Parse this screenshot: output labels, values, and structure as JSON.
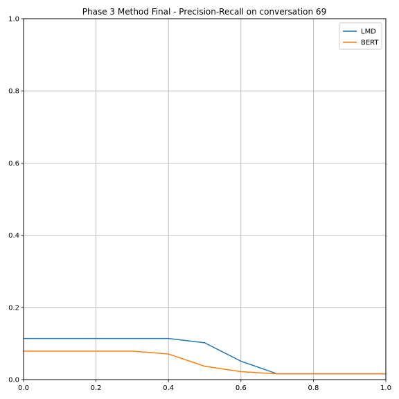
{
  "chart_data": {
    "type": "line",
    "title": "Phase 3 Method Final - Precision-Recall on conversation 69",
    "xlabel": "",
    "ylabel": "",
    "xlim": [
      0.0,
      1.0
    ],
    "ylim": [
      0.0,
      1.0
    ],
    "x_ticks": [
      "0.0",
      "0.2",
      "0.4",
      "0.6",
      "0.8",
      "1.0"
    ],
    "y_ticks": [
      "0.0",
      "0.2",
      "0.4",
      "0.6",
      "0.8",
      "1.0"
    ],
    "grid": true,
    "legend_position": "top-right",
    "series": [
      {
        "name": "LMD",
        "color": "#1f77b4",
        "x": [
          0.0,
          0.1,
          0.2,
          0.3,
          0.4,
          0.5,
          0.6,
          0.7,
          0.8,
          0.9,
          1.0
        ],
        "y": [
          0.114,
          0.114,
          0.114,
          0.114,
          0.114,
          0.102,
          0.051,
          0.016,
          0.016,
          0.016,
          0.016
        ]
      },
      {
        "name": "BERT",
        "color": "#ff7f0e",
        "x": [
          0.0,
          0.1,
          0.2,
          0.3,
          0.4,
          0.5,
          0.6,
          0.7,
          0.8,
          0.9,
          1.0
        ],
        "y": [
          0.079,
          0.079,
          0.079,
          0.079,
          0.071,
          0.037,
          0.022,
          0.016,
          0.016,
          0.016,
          0.016
        ]
      }
    ]
  }
}
